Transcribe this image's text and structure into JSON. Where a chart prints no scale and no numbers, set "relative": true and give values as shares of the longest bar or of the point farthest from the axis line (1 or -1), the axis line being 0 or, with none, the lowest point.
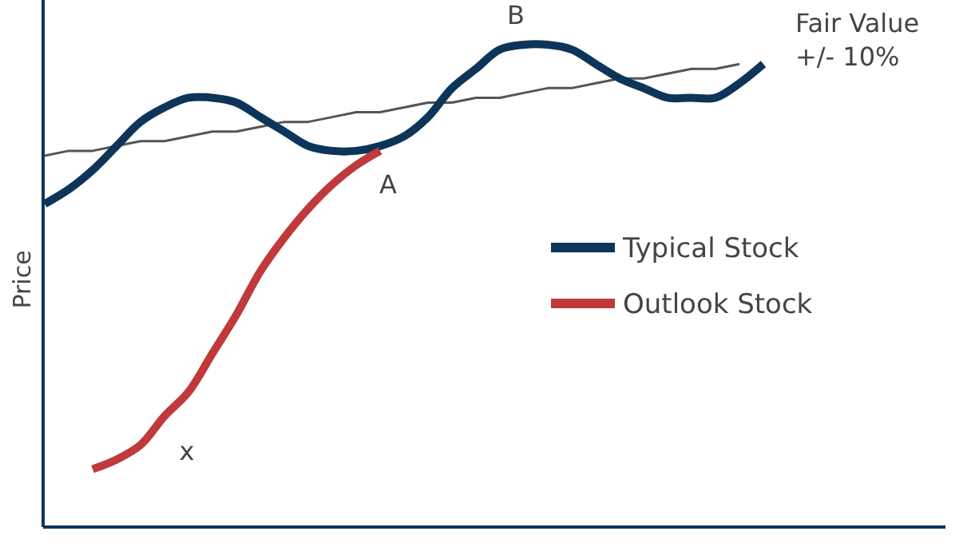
{
  "chart_data": {
    "type": "line",
    "relative": true,
    "ylabel": "Price",
    "legend": "right",
    "categories": [
      null,
      null,
      null,
      null,
      null,
      null,
      null,
      null,
      null,
      null,
      null,
      null,
      null,
      null,
      null,
      null,
      null,
      null,
      null,
      null,
      null,
      null,
      null,
      null,
      null,
      null,
      null,
      null,
      null,
      null,
      null,
      null
    ],
    "series": [
      {
        "color": "#555555",
        "values": [
          0.77,
          0.78,
          0.78,
          0.79,
          0.8,
          0.8,
          0.81,
          0.82,
          0.82,
          0.83,
          0.84,
          0.84,
          0.85,
          0.86,
          0.86,
          0.87,
          0.88,
          0.88,
          0.89,
          0.89,
          0.9,
          0.91,
          0.91,
          0.92,
          0.93,
          0.93,
          0.94,
          0.95,
          0.95,
          0.96,
          null,
          null
        ]
      },
      {
        "name": "Typical Stock",
        "color": "#0d3559",
        "values": [
          0.67,
          0.7,
          0.74,
          0.79,
          0.84,
          0.87,
          0.89,
          0.89,
          0.88,
          0.85,
          0.82,
          0.79,
          0.78,
          0.78,
          0.79,
          0.81,
          0.85,
          0.91,
          0.95,
          0.99,
          1,
          1,
          0.99,
          0.96,
          0.93,
          0.91,
          0.89,
          0.89,
          0.89,
          0.92,
          0.96,
          null
        ]
      },
      {
        "name": "Outlook Stock",
        "color": "#c0393b",
        "values": [
          null,
          null,
          0.12,
          0.14,
          0.17,
          0.23,
          0.28,
          0.36,
          0.44,
          0.53,
          0.6,
          0.66,
          0.71,
          0.75,
          0.78,
          null,
          null,
          null,
          null,
          null,
          null,
          null,
          null,
          null,
          null,
          null,
          null,
          null,
          null,
          null,
          null,
          null
        ]
      }
    ],
    "annotations": [
      "B",
      "A",
      "x",
      "Fair Value\n+/- 10%"
    ]
  }
}
